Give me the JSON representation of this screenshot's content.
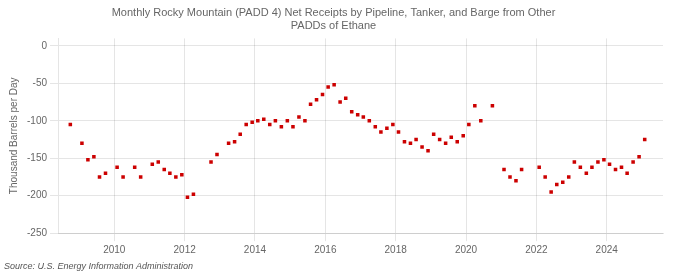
{
  "chart_data": {
    "type": "scatter",
    "title": "Monthly Rocky Mountain (PADD 4) Net Receipts by Pipeline, Tanker, and Barge from Other\nPADDs of Ethane",
    "ylabel": "Thousand Barrels per Day",
    "annotations": [
      "Source: U.S. Energy Information Administration"
    ],
    "color": "#cc0000",
    "marker": "square",
    "grid": true,
    "xlim": [
      2008.4,
      2025.6
    ],
    "xticks": [
      2010,
      2012,
      2014,
      2016,
      2018,
      2020,
      2022,
      2024
    ],
    "ylim": [
      -250,
      10
    ],
    "yticks": [
      0,
      -50,
      -100,
      -150,
      -200,
      -250
    ],
    "x": [
      2008.75,
      2009.08,
      2009.25,
      2009.42,
      2009.58,
      2009.75,
      2010.08,
      2010.25,
      2010.58,
      2010.75,
      2011.08,
      2011.25,
      2011.42,
      2011.58,
      2011.75,
      2011.92,
      2012.08,
      2012.25,
      2012.75,
      2012.92,
      2013.25,
      2013.42,
      2013.58,
      2013.75,
      2013.92,
      2014.08,
      2014.25,
      2014.42,
      2014.58,
      2014.75,
      2014.92,
      2015.08,
      2015.25,
      2015.42,
      2015.58,
      2015.75,
      2015.92,
      2016.08,
      2016.25,
      2016.42,
      2016.58,
      2016.75,
      2016.92,
      2017.08,
      2017.25,
      2017.42,
      2017.58,
      2017.75,
      2017.92,
      2018.08,
      2018.25,
      2018.42,
      2018.58,
      2018.75,
      2018.92,
      2019.08,
      2019.25,
      2019.42,
      2019.58,
      2019.75,
      2019.92,
      2020.08,
      2020.25,
      2020.42,
      2020.75,
      2021.08,
      2021.25,
      2021.42,
      2021.58,
      2022.08,
      2022.25,
      2022.42,
      2022.58,
      2022.75,
      2022.92,
      2023.08,
      2023.25,
      2023.42,
      2023.58,
      2023.75,
      2023.92,
      2024.08,
      2024.25,
      2024.42,
      2024.58,
      2024.75,
      2024.92,
      2025.08
    ],
    "values": [
      -105,
      -130,
      -152,
      -148,
      -175,
      -170,
      -162,
      -175,
      -162,
      -175,
      -158,
      -155,
      -165,
      -170,
      -175,
      -172,
      -202,
      -198,
      -155,
      -145,
      -130,
      -128,
      -118,
      -105,
      -102,
      -100,
      -98,
      -105,
      -100,
      -108,
      -100,
      -108,
      -95,
      -100,
      -78,
      -72,
      -65,
      -55,
      -52,
      -75,
      -70,
      -88,
      -92,
      -95,
      -100,
      -108,
      -115,
      -110,
      -105,
      -115,
      -128,
      -130,
      -125,
      -135,
      -140,
      -118,
      -125,
      -130,
      -122,
      -128,
      -120,
      -105,
      -80,
      -100,
      -80,
      -165,
      -175,
      -180,
      -165,
      -162,
      -175,
      -195,
      -185,
      -182,
      -175,
      -155,
      -162,
      -170,
      -162,
      -155,
      -152,
      -158,
      -165,
      -162,
      -170,
      -155,
      -148,
      -125
    ]
  }
}
